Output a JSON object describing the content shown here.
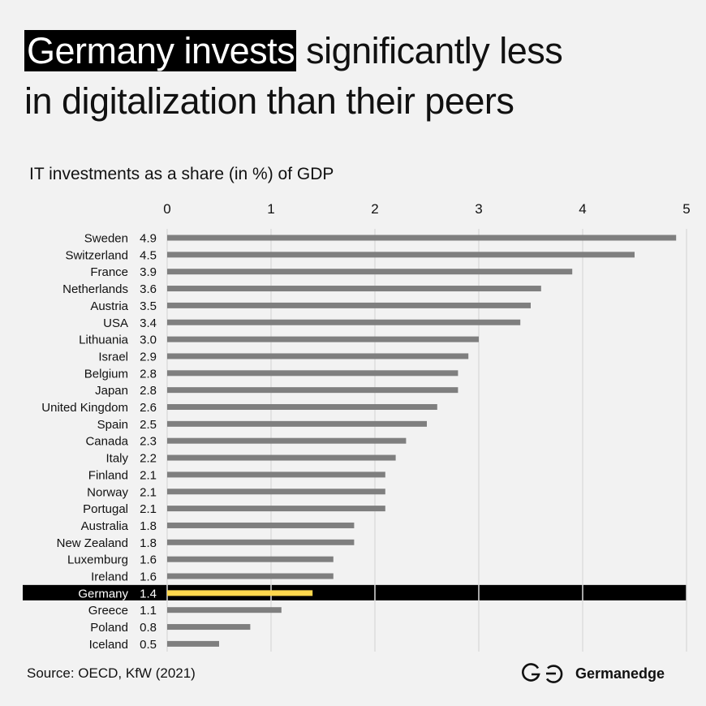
{
  "title": {
    "highlight": "Germany invests",
    "line1_rest": " significantly less",
    "line2": "in digitalization than their peers"
  },
  "source": "Source: OECD, KfW (2021)",
  "brand": {
    "name": "Germanedge",
    "logo_icon": "ge-logo-icon"
  },
  "colors": {
    "background": "#f2f2f2",
    "bar": "#7f7f7f",
    "highlight_bar": "#ffd84d",
    "highlight_band": "#000000",
    "grid": "#dcdcdc",
    "text": "#111111"
  },
  "chart_data": {
    "type": "bar",
    "orientation": "horizontal",
    "title": "IT investments as a share (in %) of GDP",
    "xlabel": "",
    "ylabel": "",
    "xlim": [
      0,
      5
    ],
    "xticks": [
      "0",
      "1",
      "2",
      "3",
      "4",
      "5"
    ],
    "grid": true,
    "highlight": "Germany",
    "categories": [
      "Sweden",
      "Switzerland",
      "France",
      "Netherlands",
      "Austria",
      "USA",
      "Lithuania",
      "Israel",
      "Belgium",
      "Japan",
      "United Kingdom",
      "Spain",
      "Canada",
      "Italy",
      "Finland",
      "Norway",
      "Portugal",
      "Australia",
      "New Zealand",
      "Luxemburg",
      "Ireland",
      "Germany",
      "Greece",
      "Poland",
      "Iceland"
    ],
    "values": [
      4.9,
      4.5,
      3.9,
      3.6,
      3.5,
      3.4,
      3.0,
      2.9,
      2.8,
      2.8,
      2.6,
      2.5,
      2.3,
      2.2,
      2.1,
      2.1,
      2.1,
      1.8,
      1.8,
      1.6,
      1.6,
      1.4,
      1.1,
      0.8,
      0.5
    ],
    "value_labels": [
      "4.9",
      "4.5",
      "3.9",
      "3.6",
      "3.5",
      "3.4",
      "3.0",
      "2.9",
      "2.8",
      "2.8",
      "2.6",
      "2.5",
      "2.3",
      "2.2",
      "2.1",
      "2.1",
      "2.1",
      "1.8",
      "1.8",
      "1.6",
      "1.6",
      "1.4",
      "1.1",
      "0.8",
      "0.5"
    ]
  }
}
